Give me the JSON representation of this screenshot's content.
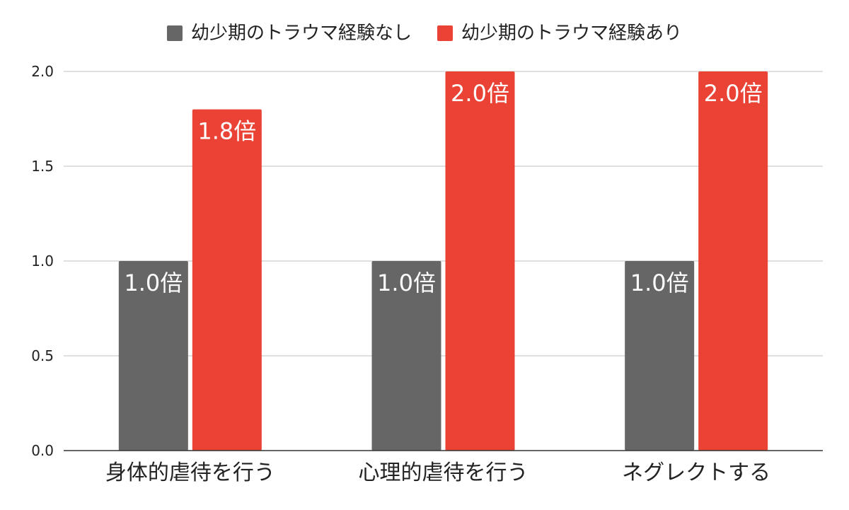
{
  "chart_data": {
    "type": "bar",
    "categories": [
      "身体的虐待を行う",
      "心理的虐待を行う",
      "ネグレクトする"
    ],
    "series": [
      {
        "name": "幼少期のトラウマ経験なし",
        "color": "#666666",
        "values": [
          1.0,
          1.0,
          1.0
        ],
        "labels": [
          "1.0倍",
          "1.0倍",
          "1.0倍"
        ]
      },
      {
        "name": "幼少期のトラウマ経験あり",
        "color": "#EA4335",
        "values": [
          1.8,
          2.0,
          2.0
        ],
        "labels": [
          "1.8倍",
          "2.0倍",
          "2.0倍"
        ]
      }
    ],
    "ylim": [
      0,
      2.0
    ],
    "yticks": [
      "0.0",
      "0.5",
      "1.0",
      "1.5",
      "2.0"
    ],
    "grid": true,
    "legend_position": "top"
  }
}
